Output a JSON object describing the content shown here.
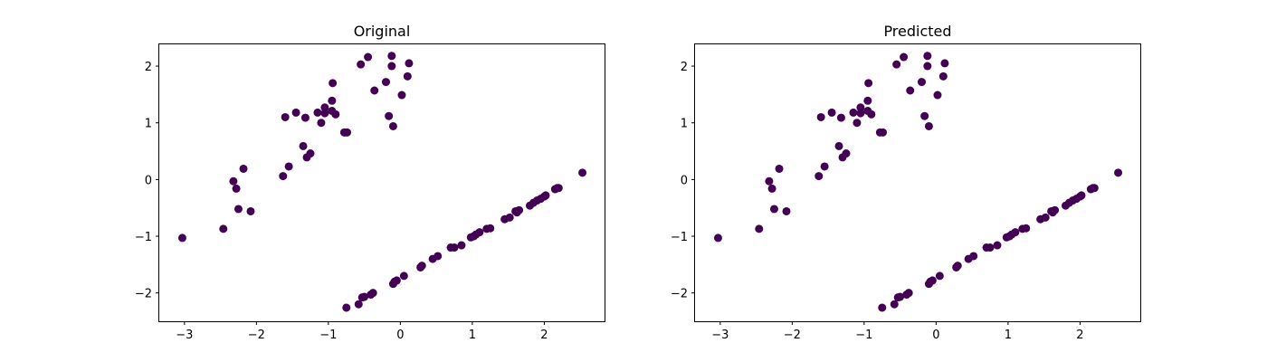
{
  "chart_data": [
    {
      "type": "scatter",
      "title": "Original",
      "xlabel": "",
      "ylabel": "",
      "xlim": [
        -3.35,
        2.85
      ],
      "ylim": [
        -2.5,
        2.4
      ],
      "xticks": [
        -3,
        -2,
        -1,
        0,
        1,
        2
      ],
      "yticks": [
        -2,
        -1,
        0,
        1,
        2
      ],
      "xtick_labels": [
        "−3",
        "−2",
        "−1",
        "0",
        "1",
        "2"
      ],
      "ytick_labels": [
        "−2",
        "−1",
        "0",
        "1",
        "2"
      ],
      "grid": false,
      "marker_color": "#440154",
      "series": [
        {
          "x": [
            -0.55,
            -0.45,
            -0.12,
            0.12,
            -0.12,
            -0.36,
            0.1,
            -0.2,
            0.02,
            -0.94,
            -0.95,
            -0.16,
            -0.1,
            -1.6,
            -1.45,
            -1.32,
            -1.15,
            -1.05,
            -0.9,
            -1.05,
            -0.95,
            -1.1,
            -0.78,
            -0.74,
            -1.35,
            -1.3,
            -1.25,
            -1.55,
            -1.63,
            -2.32,
            -2.28,
            -2.18,
            -2.25,
            -2.08,
            -3.03,
            -2.46,
            -0.75,
            -0.58,
            -0.53,
            -0.5,
            -0.38,
            -0.41,
            -0.1,
            -0.08,
            -0.05,
            0.05,
            0.28,
            0.3,
            0.45,
            0.52,
            0.7,
            0.75,
            0.85,
            0.98,
            1.02,
            1.05,
            1.1,
            1.2,
            1.25,
            1.45,
            1.52,
            1.62,
            1.65,
            1.6,
            1.8,
            1.85,
            1.9,
            1.95,
            2.0,
            2.02,
            2.15,
            2.2,
            2.18,
            2.53
          ],
          "y": [
            2.03,
            2.16,
            2.18,
            2.05,
            2.0,
            1.57,
            1.82,
            1.72,
            1.49,
            1.7,
            1.39,
            1.12,
            0.94,
            1.1,
            1.18,
            1.09,
            1.18,
            1.17,
            1.15,
            1.27,
            1.21,
            1.0,
            0.83,
            0.83,
            0.59,
            0.39,
            0.46,
            0.23,
            0.06,
            -0.03,
            -0.16,
            0.19,
            -0.52,
            -0.56,
            -1.03,
            -0.87,
            -2.26,
            -2.2,
            -2.08,
            -2.07,
            -2.0,
            -2.03,
            -1.84,
            -1.8,
            -1.78,
            -1.7,
            -1.55,
            -1.52,
            -1.4,
            -1.35,
            -1.2,
            -1.2,
            -1.16,
            -1.02,
            -1.0,
            -0.97,
            -0.93,
            -0.87,
            -0.86,
            -0.7,
            -0.67,
            -0.58,
            -0.54,
            -0.56,
            -0.46,
            -0.41,
            -0.37,
            -0.34,
            -0.3,
            -0.28,
            -0.17,
            -0.15,
            -0.15,
            0.12
          ]
        }
      ]
    },
    {
      "type": "scatter",
      "title": "Predicted",
      "xlabel": "",
      "ylabel": "",
      "xlim": [
        -3.35,
        2.85
      ],
      "ylim": [
        -2.5,
        2.4
      ],
      "xticks": [
        -3,
        -2,
        -1,
        0,
        1,
        2
      ],
      "yticks": [
        -2,
        -1,
        0,
        1,
        2
      ],
      "xtick_labels": [
        "−3",
        "−2",
        "−1",
        "0",
        "1",
        "2"
      ],
      "ytick_labels": [
        "−2",
        "−1",
        "0",
        "1",
        "2"
      ],
      "grid": false,
      "marker_color": "#440154",
      "series": [
        {
          "x": [
            -0.55,
            -0.45,
            -0.12,
            0.12,
            -0.12,
            -0.36,
            0.1,
            -0.2,
            0.02,
            -0.94,
            -0.95,
            -0.16,
            -0.1,
            -1.6,
            -1.45,
            -1.32,
            -1.15,
            -1.05,
            -0.9,
            -1.05,
            -0.95,
            -1.1,
            -0.78,
            -0.74,
            -1.35,
            -1.3,
            -1.25,
            -1.55,
            -1.63,
            -2.32,
            -2.28,
            -2.18,
            -2.25,
            -2.08,
            -3.03,
            -2.46,
            -0.75,
            -0.58,
            -0.53,
            -0.5,
            -0.38,
            -0.41,
            -0.1,
            -0.08,
            -0.05,
            0.05,
            0.28,
            0.3,
            0.45,
            0.52,
            0.7,
            0.75,
            0.85,
            0.98,
            1.02,
            1.05,
            1.1,
            1.2,
            1.25,
            1.45,
            1.52,
            1.62,
            1.65,
            1.6,
            1.8,
            1.85,
            1.9,
            1.95,
            2.0,
            2.02,
            2.15,
            2.2,
            2.18,
            2.53
          ],
          "y": [
            2.03,
            2.16,
            2.18,
            2.05,
            2.0,
            1.57,
            1.82,
            1.72,
            1.49,
            1.7,
            1.39,
            1.12,
            0.94,
            1.1,
            1.18,
            1.09,
            1.18,
            1.17,
            1.15,
            1.27,
            1.21,
            1.0,
            0.83,
            0.83,
            0.59,
            0.39,
            0.46,
            0.23,
            0.06,
            -0.03,
            -0.16,
            0.19,
            -0.52,
            -0.56,
            -1.03,
            -0.87,
            -2.26,
            -2.2,
            -2.08,
            -2.07,
            -2.0,
            -2.03,
            -1.84,
            -1.8,
            -1.78,
            -1.7,
            -1.55,
            -1.52,
            -1.4,
            -1.35,
            -1.2,
            -1.2,
            -1.16,
            -1.02,
            -1.0,
            -0.97,
            -0.93,
            -0.87,
            -0.86,
            -0.7,
            -0.67,
            -0.58,
            -0.54,
            -0.56,
            -0.46,
            -0.41,
            -0.37,
            -0.34,
            -0.3,
            -0.28,
            -0.17,
            -0.15,
            -0.15,
            0.12
          ]
        }
      ]
    }
  ]
}
